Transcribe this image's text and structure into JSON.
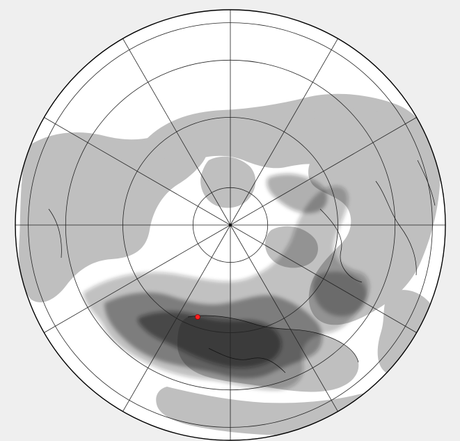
{
  "map": {
    "projection": "polar-orthographic-north",
    "background_color": "#efefef",
    "ocean_color": "#ffffff",
    "land_color": "#bfbfbf",
    "plume_color": "#1a1a1a",
    "graticule_color": "#222222",
    "source_marker_color": "#ff2020",
    "graticule": {
      "meridian_step_deg": 30,
      "latitude_circles_deg": [
        0,
        20,
        40,
        60,
        80
      ]
    }
  }
}
